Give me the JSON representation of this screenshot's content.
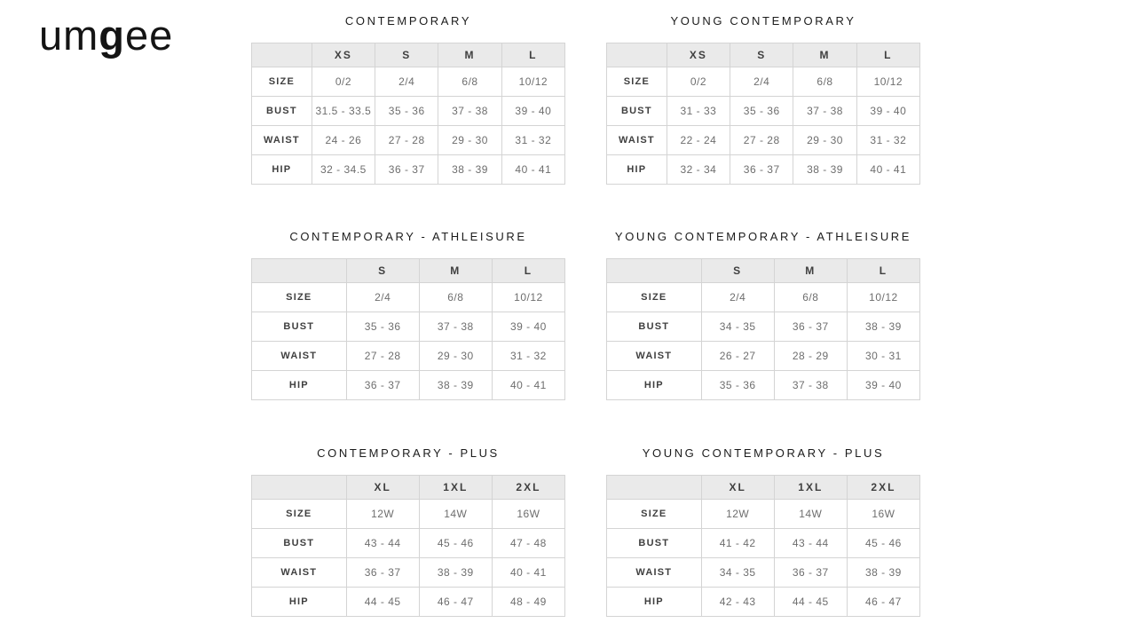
{
  "logo": {
    "part1": "um",
    "part2": "g",
    "part3": "ee"
  },
  "colors": {
    "page_background": "#ffffff",
    "table_border": "#d4d4d4",
    "header_row_background": "#eaeaea",
    "title_text": "#1c1c1c",
    "header_text": "#3f3f3f",
    "label_text": "#3f3f3f",
    "value_text": "#6e6e6e",
    "logo_text": "#141414"
  },
  "tables": [
    {
      "title": "CONTEMPORARY",
      "columns": [
        "",
        "XS",
        "S",
        "M",
        "L"
      ],
      "rows": [
        {
          "label": "SIZE",
          "values": [
            "0/2",
            "2/4",
            "6/8",
            "10/12"
          ]
        },
        {
          "label": "BUST",
          "values": [
            "31.5 - 33.5",
            "35 - 36",
            "37 - 38",
            "39 - 40"
          ]
        },
        {
          "label": "WAIST",
          "values": [
            "24 - 26",
            "27 - 28",
            "29 - 30",
            "31 - 32"
          ]
        },
        {
          "label": "HIP",
          "values": [
            "32 - 34.5",
            "36 - 37",
            "38 - 39",
            "40 - 41"
          ]
        }
      ]
    },
    {
      "title": "YOUNG CONTEMPORARY",
      "columns": [
        "",
        "XS",
        "S",
        "M",
        "L"
      ],
      "rows": [
        {
          "label": "SIZE",
          "values": [
            "0/2",
            "2/4",
            "6/8",
            "10/12"
          ]
        },
        {
          "label": "BUST",
          "values": [
            "31 - 33",
            "35 - 36",
            "37 - 38",
            "39 - 40"
          ]
        },
        {
          "label": "WAIST",
          "values": [
            "22 - 24",
            "27 - 28",
            "29 - 30",
            "31 - 32"
          ]
        },
        {
          "label": "HIP",
          "values": [
            "32 - 34",
            "36 - 37",
            "38 - 39",
            "40 - 41"
          ]
        }
      ]
    },
    {
      "title": "CONTEMPORARY - ATHLEISURE",
      "columns": [
        "",
        "S",
        "M",
        "L"
      ],
      "rows": [
        {
          "label": "SIZE",
          "values": [
            "2/4",
            "6/8",
            "10/12"
          ]
        },
        {
          "label": "BUST",
          "values": [
            "35 - 36",
            "37 - 38",
            "39 - 40"
          ]
        },
        {
          "label": "WAIST",
          "values": [
            "27 - 28",
            "29 - 30",
            "31 - 32"
          ]
        },
        {
          "label": "HIP",
          "values": [
            "36 - 37",
            "38 - 39",
            "40 - 41"
          ]
        }
      ]
    },
    {
      "title": "YOUNG CONTEMPORARY - ATHLEISURE",
      "columns": [
        "",
        "S",
        "M",
        "L"
      ],
      "rows": [
        {
          "label": "SIZE",
          "values": [
            "2/4",
            "6/8",
            "10/12"
          ]
        },
        {
          "label": "BUST",
          "values": [
            "34 - 35",
            "36 - 37",
            "38 - 39"
          ]
        },
        {
          "label": "WAIST",
          "values": [
            "26 - 27",
            "28 - 29",
            "30 - 31"
          ]
        },
        {
          "label": "HIP",
          "values": [
            "35 - 36",
            "37 - 38",
            "39 - 40"
          ]
        }
      ]
    },
    {
      "title": "CONTEMPORARY - PLUS",
      "columns": [
        "",
        "XL",
        "1XL",
        "2XL"
      ],
      "rows": [
        {
          "label": "SIZE",
          "values": [
            "12W",
            "14W",
            "16W"
          ]
        },
        {
          "label": "BUST",
          "values": [
            "43 - 44",
            "45 - 46",
            "47 - 48"
          ]
        },
        {
          "label": "WAIST",
          "values": [
            "36 - 37",
            "38 - 39",
            "40 - 41"
          ]
        },
        {
          "label": "HIP",
          "values": [
            "44 - 45",
            "46 - 47",
            "48 - 49"
          ]
        }
      ]
    },
    {
      "title": "YOUNG CONTEMPORARY - PLUS",
      "columns": [
        "",
        "XL",
        "1XL",
        "2XL"
      ],
      "rows": [
        {
          "label": "SIZE",
          "values": [
            "12W",
            "14W",
            "16W"
          ]
        },
        {
          "label": "BUST",
          "values": [
            "41 - 42",
            "43 - 44",
            "45 - 46"
          ]
        },
        {
          "label": "WAIST",
          "values": [
            "34 - 35",
            "36 - 37",
            "38 - 39"
          ]
        },
        {
          "label": "HIP",
          "values": [
            "42 - 43",
            "44 - 45",
            "46 - 47"
          ]
        }
      ]
    }
  ]
}
